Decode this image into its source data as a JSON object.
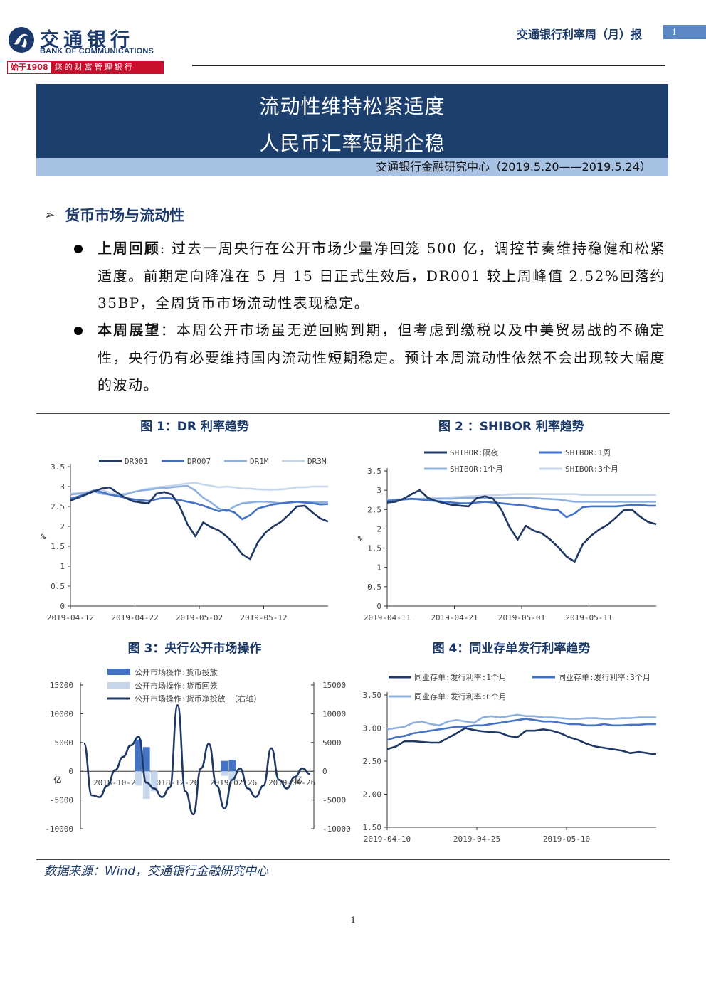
{
  "header": {
    "logo_cn": "交通银行",
    "logo_en": "BANK OF COMMUNICATIONS",
    "logo_since": "始于1908",
    "logo_slogan": "您的财富管理银行",
    "report_title": "交通银行利率周（月）报",
    "page_badge": "1"
  },
  "banner": {
    "line1": "流动性维持松紧适度",
    "line2": "人民币汇率短期企稳",
    "sub": "交通银行金融研究中心（2019.5.20——2019.5.24）"
  },
  "section": {
    "title": "货币市场与流动性",
    "bullets": [
      {
        "label": "上周回顾",
        "sep": ":",
        "text": " 过去一周央行在公开市场少量净回笼 500 亿，调控节奏维持稳健和松紧适度。前期定向降准在 5 月 15 日正式生效后，DR001 较上周峰值 2.52%回落约 35BP，全周货币市场流动性表现稳定。"
      },
      {
        "label": "本周展望",
        "sep": "：",
        "text": "本周公开市场虽无逆回购到期，但考虑到缴税以及中美贸易战的不确定性，央行仍有必要维持国内流动性短期稳定。预计本周流动性依然不会出现较大幅度的波动。"
      }
    ]
  },
  "figures": {
    "fig1_title": "图 1：DR 利率趋势",
    "fig2_title": "图 2 ：SHIBOR 利率趋势",
    "fig3_title": "图 3：央行公开市场操作",
    "fig4_title": "图 4：同业存单发行利率趋势"
  },
  "source": "数据来源：Wind，交通银行金融研究中心",
  "page_number": "1",
  "colors": {
    "navy": "#1d3f6e",
    "dark": "#1f3864",
    "mid": "#4472c4",
    "light": "#8fb0dc",
    "pale": "#c6d6ec",
    "accent_red": "#c8102e"
  },
  "chart_data": [
    {
      "id": "fig1",
      "type": "line",
      "title": "图 1：DR 利率趋势",
      "ylabel": "%",
      "ylim": [
        0,
        3.5
      ],
      "yticks": [
        "0",
        "0.5",
        "1",
        "1.5",
        "2",
        "2.5",
        "3",
        "3.5"
      ],
      "xticks": [
        "2019-04-12",
        "2019-04-22",
        "2019-05-02",
        "2019-05-12"
      ],
      "legend": "top",
      "x": [
        "04-08",
        "04-09",
        "04-10",
        "04-11",
        "04-12",
        "04-15",
        "04-16",
        "04-17",
        "04-18",
        "04-19",
        "04-22",
        "04-23",
        "04-24",
        "04-25",
        "04-26",
        "04-28",
        "04-29",
        "04-30",
        "05-05",
        "05-06",
        "05-07",
        "05-08",
        "05-09",
        "05-10",
        "05-13",
        "05-14",
        "05-15",
        "05-16",
        "05-17",
        "05-20",
        "05-21",
        "05-22",
        "05-23",
        "05-24"
      ],
      "series": [
        {
          "name": "DR001",
          "values": [
            2.65,
            2.72,
            2.8,
            2.88,
            2.95,
            2.98,
            2.85,
            2.72,
            2.63,
            2.6,
            2.58,
            2.82,
            2.86,
            2.8,
            2.5,
            2.05,
            1.75,
            2.1,
            1.98,
            1.9,
            1.75,
            1.55,
            1.3,
            1.18,
            1.6,
            1.85,
            2.0,
            2.12,
            2.3,
            2.5,
            2.52,
            2.35,
            2.2,
            2.12
          ]
        },
        {
          "name": "DR007",
          "values": [
            2.7,
            2.75,
            2.82,
            2.9,
            2.86,
            2.8,
            2.76,
            2.72,
            2.68,
            2.66,
            2.64,
            2.68,
            2.72,
            2.7,
            2.66,
            2.62,
            2.58,
            2.52,
            2.45,
            2.38,
            2.42,
            2.35,
            2.18,
            2.28,
            2.45,
            2.5,
            2.55,
            2.58,
            2.6,
            2.62,
            2.6,
            2.58,
            2.55,
            2.56
          ]
        },
        {
          "name": "DR1M",
          "values": [
            2.8,
            2.82,
            2.84,
            2.88,
            2.82,
            2.8,
            2.78,
            2.8,
            2.86,
            2.9,
            2.92,
            2.95,
            2.96,
            2.98,
            3.0,
            3.02,
            2.9,
            2.72,
            2.6,
            2.45,
            2.38,
            2.5,
            2.58,
            2.6,
            2.62,
            2.62,
            2.6,
            2.58,
            2.6,
            2.62,
            2.6,
            2.62,
            2.6,
            2.62
          ]
        },
        {
          "name": "DR3M",
          "values": [
            2.82,
            2.84,
            2.86,
            2.9,
            2.92,
            2.85,
            2.8,
            2.82,
            2.86,
            2.9,
            2.95,
            2.98,
            3.0,
            3.02,
            3.05,
            3.08,
            3.1,
            3.05,
            3.02,
            2.98,
            3.0,
            2.98,
            2.95,
            2.95,
            2.93,
            2.92,
            2.92,
            2.93,
            2.95,
            2.98,
            2.98,
            3.0,
            3.0,
            3.0
          ]
        }
      ]
    },
    {
      "id": "fig2",
      "type": "line",
      "title": "图 2 ：SHIBOR 利率趋势",
      "ylabel": "%",
      "ylim": [
        0,
        3.5
      ],
      "yticks": [
        "0",
        "0.5",
        "1",
        "1.5",
        "2",
        "2.5",
        "3",
        "3.5"
      ],
      "xticks": [
        "2019-04-11",
        "2019-04-21",
        "2019-05-01",
        "2019-05-11"
      ],
      "legend": "top",
      "x": [
        "04-08",
        "04-09",
        "04-10",
        "04-11",
        "04-12",
        "04-15",
        "04-16",
        "04-17",
        "04-18",
        "04-19",
        "04-22",
        "04-23",
        "04-24",
        "04-25",
        "04-26",
        "04-28",
        "04-29",
        "04-30",
        "05-05",
        "05-06",
        "05-07",
        "05-08",
        "05-09",
        "05-10",
        "05-13",
        "05-14",
        "05-15",
        "05-16",
        "05-17",
        "05-20",
        "05-21",
        "05-22",
        "05-23",
        "05-24"
      ],
      "series": [
        {
          "name": "SHIBOR:隔夜",
          "values": [
            2.68,
            2.7,
            2.78,
            2.9,
            3.0,
            2.8,
            2.72,
            2.66,
            2.62,
            2.6,
            2.58,
            2.8,
            2.84,
            2.78,
            2.5,
            2.05,
            1.72,
            2.08,
            1.95,
            1.88,
            1.72,
            1.52,
            1.28,
            1.15,
            1.6,
            1.82,
            1.98,
            2.1,
            2.28,
            2.48,
            2.5,
            2.32,
            2.18,
            2.12
          ]
        },
        {
          "name": "SHIBOR:1周",
          "values": [
            2.72,
            2.74,
            2.76,
            2.78,
            2.76,
            2.74,
            2.72,
            2.7,
            2.68,
            2.66,
            2.66,
            2.68,
            2.7,
            2.68,
            2.66,
            2.64,
            2.62,
            2.6,
            2.56,
            2.52,
            2.5,
            2.48,
            2.3,
            2.4,
            2.56,
            2.58,
            2.58,
            2.58,
            2.58,
            2.6,
            2.62,
            2.62,
            2.6,
            2.6
          ]
        },
        {
          "name": "SHIBOR:1个月",
          "values": [
            2.74,
            2.75,
            2.76,
            2.77,
            2.77,
            2.77,
            2.78,
            2.78,
            2.78,
            2.8,
            2.8,
            2.8,
            2.8,
            2.8,
            2.8,
            2.8,
            2.8,
            2.8,
            2.79,
            2.78,
            2.77,
            2.76,
            2.73,
            2.7,
            2.7,
            2.7,
            2.7,
            2.7,
            2.7,
            2.7,
            2.7,
            2.7,
            2.7,
            2.7
          ]
        },
        {
          "name": "SHIBOR:3个月",
          "values": [
            2.76,
            2.76,
            2.77,
            2.78,
            2.78,
            2.79,
            2.8,
            2.81,
            2.82,
            2.83,
            2.84,
            2.85,
            2.86,
            2.87,
            2.88,
            2.89,
            2.9,
            2.9,
            2.9,
            2.9,
            2.9,
            2.9,
            2.9,
            2.9,
            2.88,
            2.88,
            2.88,
            2.88,
            2.88,
            2.88,
            2.88,
            2.88,
            2.88,
            2.88
          ]
        }
      ]
    },
    {
      "id": "fig3",
      "type": "bar",
      "title": "图 3：央行公开市场操作",
      "ylabel": "亿",
      "ylim": [
        -10000,
        15000
      ],
      "yticks": [
        "-10000",
        "-5000",
        "0",
        "5000",
        "10000",
        "15000"
      ],
      "xticks": [
        "2018-10-26",
        "2018-12-26",
        "2019-02-26",
        "2019-04-26"
      ],
      "legend": "top",
      "series": [
        {
          "name": "公开市场操作:货币投放",
          "type": "bar",
          "values": [
            0,
            0,
            0,
            0,
            0,
            0,
            0,
            5500,
            4200,
            0,
            0,
            0,
            0,
            0,
            0,
            0,
            0,
            0,
            1800,
            2000,
            0,
            0,
            0,
            0,
            0,
            0,
            0,
            0,
            0,
            0
          ]
        },
        {
          "name": "公开市场操作:货币回笼",
          "type": "bar",
          "values": [
            0,
            0,
            0,
            0,
            0,
            0,
            0,
            -2500,
            -4800,
            -3500,
            0,
            0,
            0,
            0,
            0,
            0,
            0,
            0,
            -800,
            -1600,
            0,
            0,
            0,
            0,
            0,
            0,
            0,
            0,
            0,
            0
          ]
        },
        {
          "name": "公开市场操作:货币净投放 （右轴）",
          "type": "line",
          "axis": "right",
          "values": [
            4800,
            -4200,
            -4500,
            -2500,
            200,
            2500,
            4500,
            6000,
            -2000,
            -3000,
            -4500,
            -2800,
            11500,
            -3500,
            -7500,
            500,
            4800,
            -2500,
            -6500,
            -1500,
            500,
            -3000,
            -4500,
            -2500,
            4000,
            -1500,
            -3000,
            -1000,
            500,
            -500
          ]
        }
      ]
    },
    {
      "id": "fig4",
      "type": "line",
      "title": "图 4：同业存单发行利率趋势",
      "ylabel": "",
      "ylim": [
        1.5,
        3.5
      ],
      "yticks": [
        "1.50",
        "2.00",
        "2.50",
        "3.00",
        "3.50"
      ],
      "xticks": [
        "2019-04-10",
        "2019-04-25",
        "2019-05-10"
      ],
      "legend": "top",
      "x": [
        "04-10",
        "04-11",
        "04-12",
        "04-15",
        "04-16",
        "04-17",
        "04-18",
        "04-19",
        "04-22",
        "04-23",
        "04-24",
        "04-25",
        "04-26",
        "04-28",
        "04-29",
        "04-30",
        "05-05",
        "05-06",
        "05-07",
        "05-08",
        "05-09",
        "05-10",
        "05-13",
        "05-14",
        "05-15",
        "05-16",
        "05-17",
        "05-20",
        "05-21",
        "05-22",
        "05-23",
        "05-24"
      ],
      "series": [
        {
          "name": "同业存单:发行利率:1个月",
          "values": [
            2.68,
            2.72,
            2.8,
            2.8,
            2.79,
            2.78,
            2.78,
            2.85,
            2.92,
            3.0,
            2.97,
            2.95,
            2.94,
            2.93,
            2.88,
            2.86,
            2.96,
            2.96,
            2.98,
            2.96,
            2.92,
            2.86,
            2.82,
            2.76,
            2.72,
            2.7,
            2.68,
            2.66,
            2.62,
            2.64,
            2.62,
            2.6
          ]
        },
        {
          "name": "同业存单:发行利率:3个月",
          "values": [
            2.82,
            2.86,
            2.88,
            2.92,
            2.94,
            2.96,
            2.98,
            3.0,
            3.02,
            3.02,
            3.04,
            3.04,
            3.06,
            3.08,
            3.1,
            3.12,
            3.14,
            3.12,
            3.1,
            3.1,
            3.08,
            3.06,
            3.06,
            3.04,
            3.04,
            3.06,
            3.04,
            3.04,
            3.05,
            3.05,
            3.06,
            3.06
          ]
        },
        {
          "name": "同业存单:发行利率:6个月",
          "values": [
            2.98,
            3.0,
            3.02,
            3.08,
            3.1,
            3.06,
            3.04,
            3.1,
            3.12,
            3.1,
            3.08,
            3.16,
            3.18,
            3.16,
            3.18,
            3.2,
            3.18,
            3.18,
            3.16,
            3.16,
            3.15,
            3.14,
            3.14,
            3.15,
            3.15,
            3.14,
            3.14,
            3.15,
            3.15,
            3.16,
            3.16,
            3.16
          ]
        }
      ]
    }
  ]
}
